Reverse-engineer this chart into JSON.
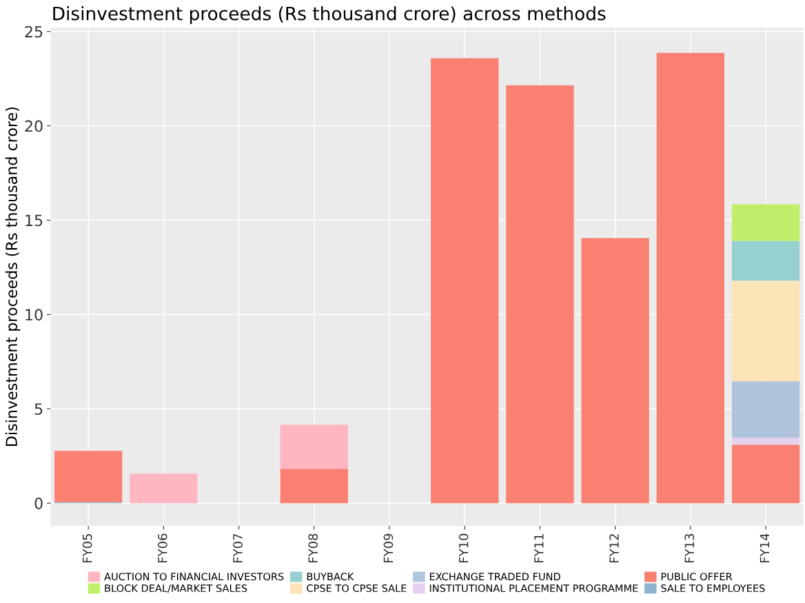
{
  "chart_data": {
    "type": "bar",
    "title": "Disinvestment proceeds (Rs thousand crore) across methods",
    "ylabel": "Disinvestment proceeds (Rs thousand crore)",
    "categories": [
      "FY05",
      "FY06",
      "FY07",
      "FY08",
      "FY09",
      "FY10",
      "FY11",
      "FY12",
      "FY13",
      "FY14"
    ],
    "stacked": true,
    "ylim": [
      -1.2,
      25.2
    ],
    "yticks": [
      0,
      5,
      10,
      15,
      20,
      25
    ],
    "grid": true,
    "legend": "bottom",
    "series": [
      {
        "name": "SALE TO EMPLOYEES",
        "color": "#8db4cc",
        "values": [
          0.05,
          null,
          null,
          null,
          null,
          null,
          null,
          null,
          null,
          null
        ]
      },
      {
        "name": "PUBLIC OFFER",
        "color": "#fa8072",
        "values": [
          2.72,
          null,
          null,
          1.82,
          null,
          23.58,
          22.15,
          14.05,
          23.87,
          3.1
        ]
      },
      {
        "name": "INSTITUTIONAL PLACEMENT PROGRAMME",
        "color": "#e6d0ef",
        "values": [
          null,
          null,
          null,
          null,
          null,
          null,
          null,
          null,
          null,
          0.37
        ]
      },
      {
        "name": "EXCHANGE TRADED FUND",
        "color": "#b0c4de",
        "values": [
          null,
          null,
          null,
          null,
          null,
          null,
          null,
          null,
          null,
          2.99
        ]
      },
      {
        "name": "CPSE TO CPSE SALE",
        "color": "#fde4b6",
        "values": [
          null,
          null,
          null,
          null,
          null,
          null,
          null,
          null,
          null,
          5.33
        ]
      },
      {
        "name": "BUYBACK",
        "color": "#96d0cf",
        "values": [
          null,
          null,
          null,
          null,
          null,
          null,
          null,
          null,
          null,
          2.11
        ]
      },
      {
        "name": "BLOCK DEAL/MARKET SALES",
        "color": "#bfef6a",
        "values": [
          null,
          null,
          null,
          null,
          null,
          null,
          null,
          null,
          null,
          1.94
        ]
      },
      {
        "name": "AUCTION TO FINANCIAL INVESTORS",
        "color": "#ffb6c1",
        "values": [
          null,
          1.57,
          null,
          2.34,
          null,
          null,
          null,
          null,
          null,
          null
        ]
      }
    ]
  }
}
